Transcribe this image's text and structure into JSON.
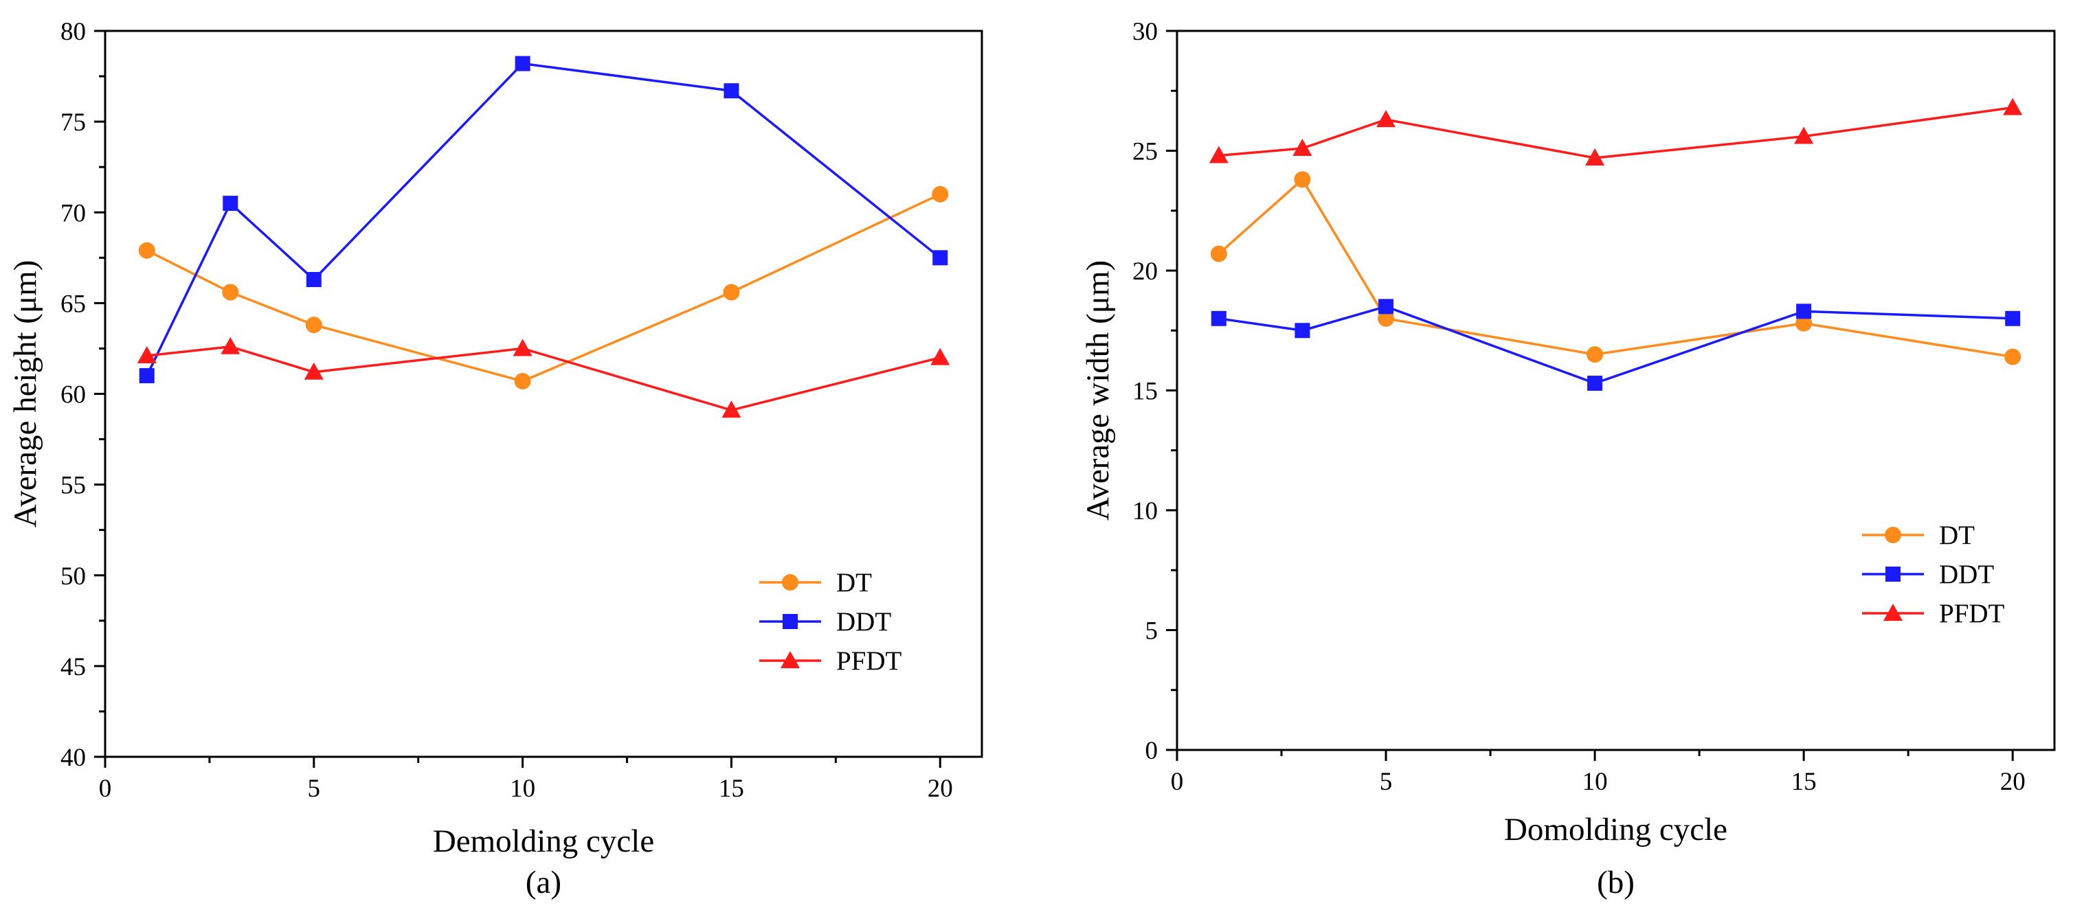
{
  "colors": {
    "DT": "#ff8c1a",
    "DDT": "#1a1aff",
    "PFDT": "#ff1a1a"
  },
  "chart_data": [
    {
      "type": "line",
      "panel": "a",
      "caption": "(a)",
      "xlabel": "Demolding cycle",
      "ylabel": "Average height (μm)",
      "xlim": [
        0,
        21
      ],
      "ylim": [
        40,
        80
      ],
      "xticks": [
        0,
        5,
        10,
        15,
        20
      ],
      "yticks": [
        40,
        45,
        50,
        55,
        60,
        65,
        70,
        75,
        80
      ],
      "x": [
        1,
        3,
        5,
        10,
        15,
        20
      ],
      "series": [
        {
          "name": "DT",
          "marker": "circle",
          "values": [
            67.9,
            65.6,
            63.8,
            60.7,
            65.6,
            71.0
          ]
        },
        {
          "name": "DDT",
          "marker": "square",
          "values": [
            61.0,
            70.5,
            66.3,
            78.2,
            76.7,
            67.5
          ]
        },
        {
          "name": "PFDT",
          "marker": "triangle",
          "values": [
            62.1,
            62.6,
            61.2,
            62.5,
            59.1,
            62.0
          ]
        }
      ],
      "legend": [
        "DT",
        "DDT",
        "PFDT"
      ],
      "legend_position": "bottom-right"
    },
    {
      "type": "line",
      "panel": "b",
      "caption": "(b)",
      "xlabel": "Domolding cycle",
      "ylabel": "Average width (μm)",
      "xlim": [
        0,
        21
      ],
      "ylim": [
        0,
        30
      ],
      "xticks": [
        0,
        5,
        10,
        15,
        20
      ],
      "yticks": [
        0,
        5,
        10,
        15,
        20,
        25,
        30
      ],
      "x": [
        1,
        3,
        5,
        10,
        15,
        20
      ],
      "series": [
        {
          "name": "DT",
          "marker": "circle",
          "values": [
            20.7,
            23.8,
            18.0,
            16.5,
            17.8,
            16.4
          ]
        },
        {
          "name": "DDT",
          "marker": "square",
          "values": [
            18.0,
            17.5,
            18.5,
            15.3,
            18.3,
            18.0
          ]
        },
        {
          "name": "PFDT",
          "marker": "triangle",
          "values": [
            24.8,
            25.1,
            26.3,
            24.7,
            25.6,
            26.8
          ]
        }
      ],
      "legend": [
        "DT",
        "DDT",
        "PFDT"
      ],
      "legend_position": "center-right"
    }
  ]
}
